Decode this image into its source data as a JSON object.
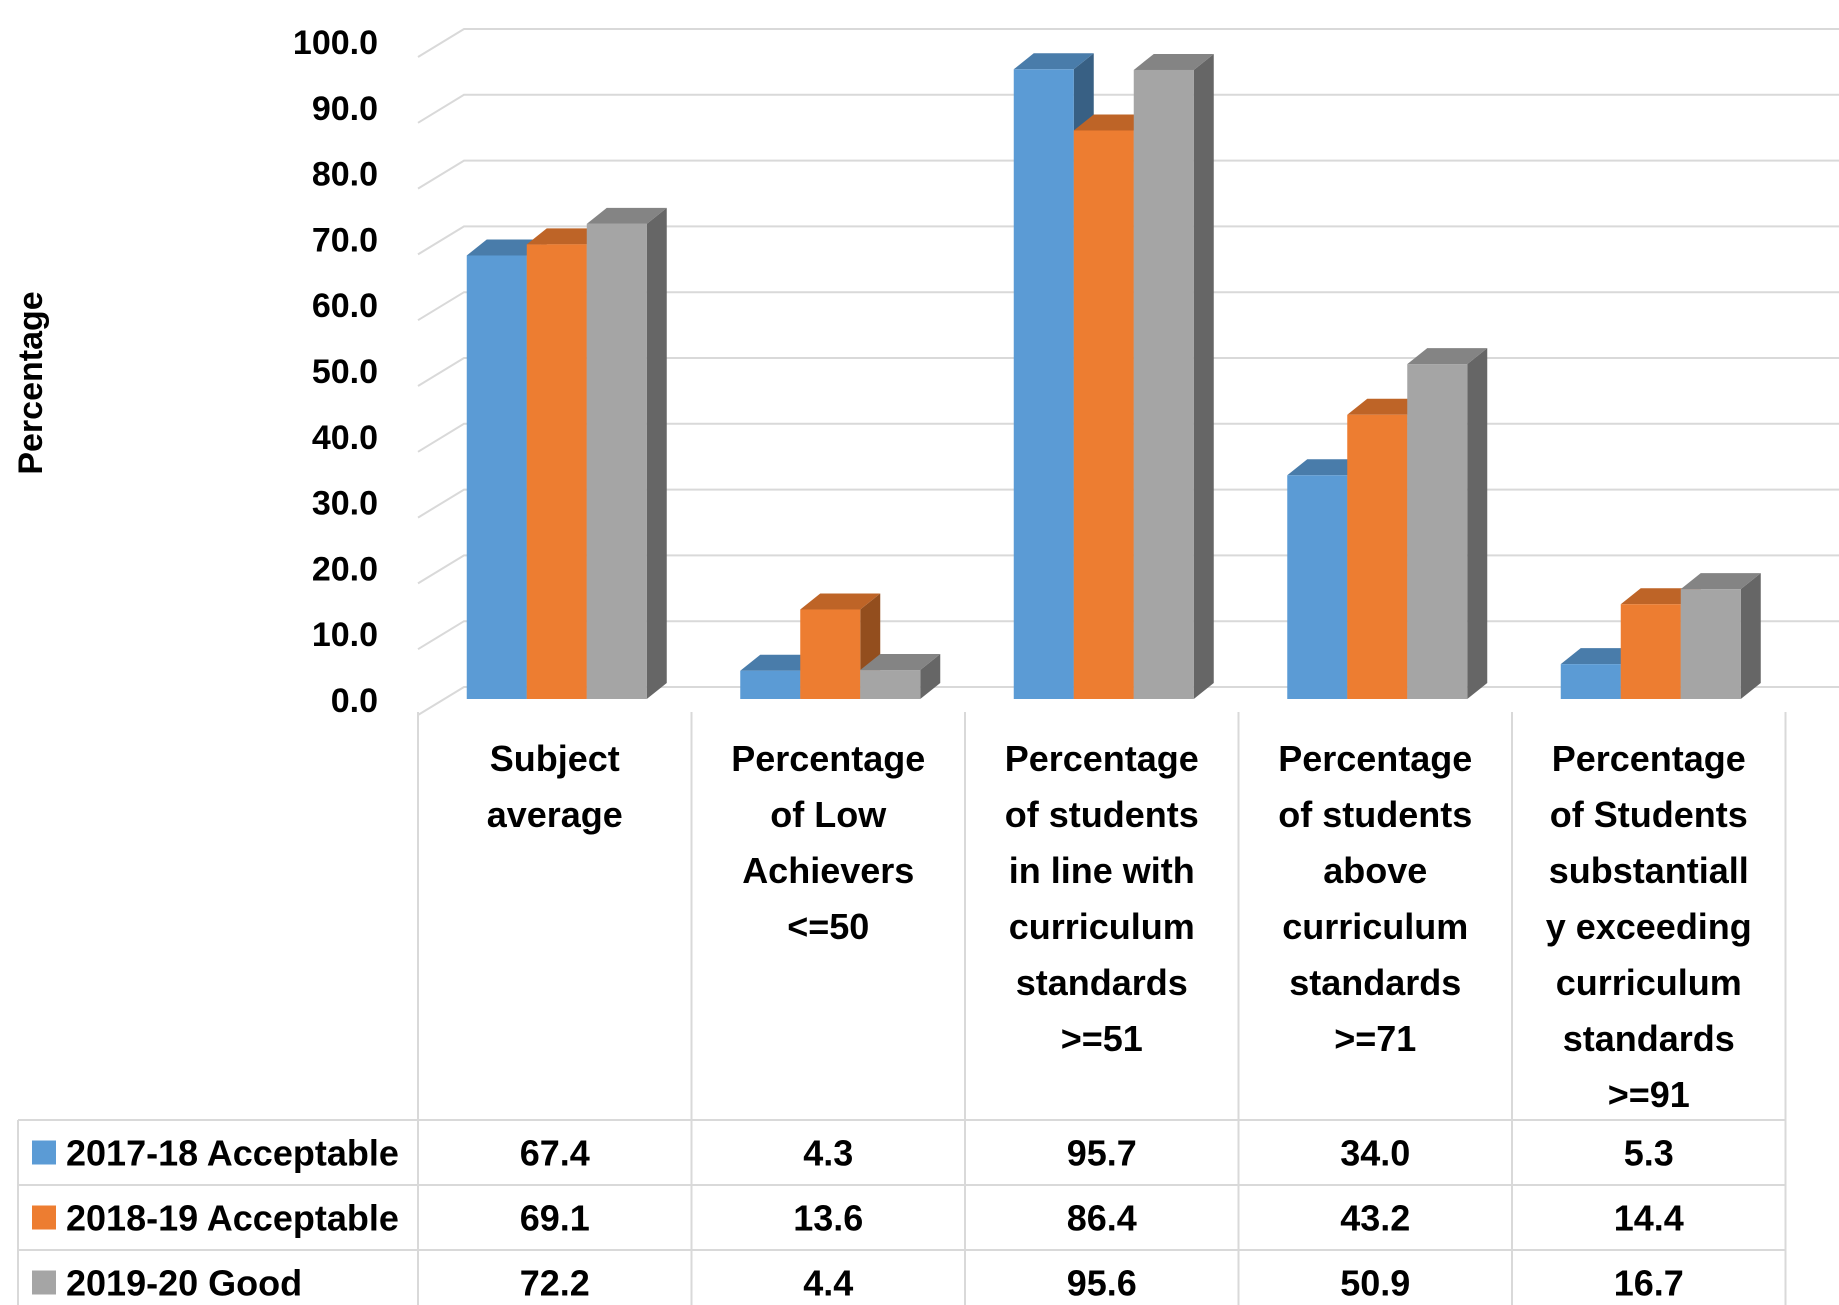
{
  "chart_data": {
    "type": "bar",
    "title": "",
    "ylabel": "Percentage",
    "xlabel": "",
    "ylim": [
      0,
      100
    ],
    "yticks": [
      "0.0",
      "10.0",
      "20.0",
      "30.0",
      "40.0",
      "50.0",
      "60.0",
      "70.0",
      "80.0",
      "90.0",
      "100.0"
    ],
    "grid": true,
    "style": "3d-clustered-column-with-data-table",
    "categories": [
      [
        "Subject",
        "average"
      ],
      [
        "Percentage",
        "of Low",
        "Achievers",
        "<=50"
      ],
      [
        "Percentage",
        "of students",
        "in line with",
        "curriculum",
        "standards",
        ">=51"
      ],
      [
        "Percentage",
        "of students",
        "above",
        "curriculum",
        "standards",
        ">=71"
      ],
      [
        "Percentage",
        "of Students",
        "substantiall",
        "y exceeding",
        "curriculum",
        "standards",
        ">=91"
      ]
    ],
    "series": [
      {
        "name": "2017-18 Acceptable",
        "color": "#5B9BD5",
        "values": [
          67.4,
          4.3,
          95.7,
          34.0,
          5.3
        ],
        "labels": [
          "67.4",
          "4.3",
          "95.7",
          "34.0",
          "5.3"
        ]
      },
      {
        "name": "2018-19 Acceptable",
        "color": "#ED7D31",
        "values": [
          69.1,
          13.6,
          86.4,
          43.2,
          14.4
        ],
        "labels": [
          "69.1",
          "13.6",
          "86.4",
          "43.2",
          "14.4"
        ]
      },
      {
        "name": "2019-20 Good",
        "color": "#A5A5A5",
        "values": [
          72.2,
          4.4,
          95.6,
          50.9,
          16.7
        ],
        "labels": [
          "72.2",
          "4.4",
          "95.6",
          "50.9",
          "16.7"
        ]
      }
    ]
  }
}
